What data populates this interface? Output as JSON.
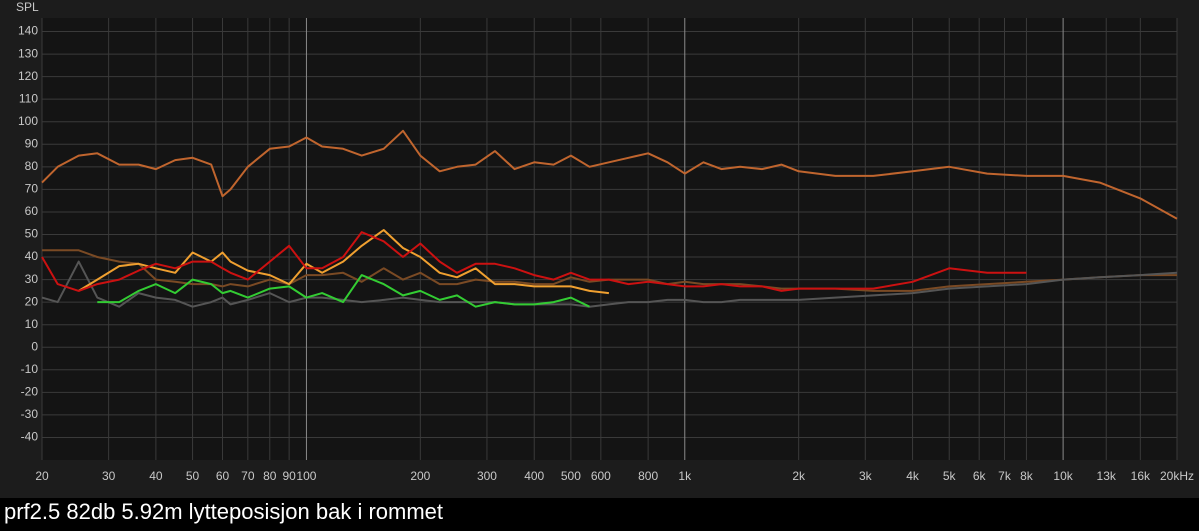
{
  "chart_data": {
    "type": "line",
    "title": "prf2.5 82db 5.92m lytteposisjon bak i rommet",
    "y_label": "SPL",
    "log_x": true,
    "grid": true,
    "xlim": [
      20,
      20000
    ],
    "ylim": [
      -50,
      146
    ],
    "yticks": [
      140,
      130,
      120,
      110,
      100,
      90,
      80,
      70,
      60,
      50,
      40,
      30,
      20,
      10,
      0,
      -10,
      -20,
      -30,
      -40
    ],
    "xticks": [
      20,
      30,
      40,
      50,
      60,
      70,
      80,
      90,
      100,
      200,
      300,
      400,
      500,
      600,
      800,
      {
        "value": 1000,
        "label": "1k"
      },
      {
        "value": 2000,
        "label": "2k"
      },
      {
        "value": 3000,
        "label": "3k"
      },
      {
        "value": 4000,
        "label": "4k"
      },
      {
        "value": 5000,
        "label": "5k"
      },
      {
        "value": 6000,
        "label": "6k"
      },
      {
        "value": 7000,
        "label": "7k"
      },
      {
        "value": 8000,
        "label": "8k"
      },
      {
        "value": 10000,
        "label": "10k"
      },
      {
        "value": 13000,
        "label": "13k"
      },
      {
        "value": 16000,
        "label": "16k"
      },
      {
        "value": 20000,
        "label": "20kHz"
      }
    ],
    "x": [
      20,
      22,
      25,
      28,
      32,
      36,
      40,
      45,
      50,
      56,
      60,
      63,
      70,
      80,
      90,
      100,
      110,
      125,
      140,
      160,
      180,
      200,
      225,
      250,
      280,
      315,
      355,
      400,
      450,
      500,
      560,
      630,
      710,
      800,
      900,
      1000,
      1120,
      1250,
      1400,
      1600,
      1800,
      2000,
      2500,
      3150,
      4000,
      5000,
      6300,
      8000,
      10000,
      12500,
      16000,
      20000
    ],
    "series": [
      {
        "color": "#7a4a24",
        "values": [
          43,
          43,
          43,
          40,
          38,
          37,
          30,
          29,
          28,
          28,
          27,
          28,
          27,
          30,
          28,
          32,
          32,
          33,
          29,
          35,
          30,
          33,
          28,
          28,
          30,
          29,
          29,
          28,
          28,
          31,
          29,
          30,
          30,
          30,
          28,
          29,
          28,
          28,
          28,
          27,
          26,
          26,
          26,
          25,
          25,
          27,
          28,
          29,
          30,
          31,
          32,
          32
        ]
      },
      {
        "color": "#555555",
        "values": [
          22,
          20,
          38,
          22,
          18,
          24,
          22,
          21,
          18,
          20,
          22,
          19,
          21,
          24,
          20,
          22,
          22,
          21,
          20,
          21,
          22,
          21,
          20,
          20,
          20,
          20,
          19,
          19,
          19,
          19,
          18,
          19,
          20,
          20,
          21,
          21,
          20,
          20,
          21,
          21,
          21,
          21,
          22,
          23,
          24,
          26,
          27,
          28,
          30,
          31,
          32,
          33
        ]
      },
      {
        "color": "#33cc33",
        "values": [
          null,
          null,
          null,
          20,
          20,
          25,
          28,
          24,
          30,
          28,
          24,
          25,
          22,
          26,
          27,
          22,
          24,
          20,
          32,
          28,
          23,
          25,
          21,
          23,
          18,
          20,
          19,
          19,
          20,
          22,
          18,
          null,
          null,
          null,
          null,
          null,
          null,
          null,
          null,
          null,
          null,
          null,
          null,
          null,
          null,
          null,
          null,
          null,
          null,
          null,
          null,
          null
        ]
      },
      {
        "color": "#f0a030",
        "values": [
          null,
          null,
          25,
          30,
          36,
          37,
          35,
          33,
          42,
          38,
          42,
          38,
          34,
          32,
          28,
          37,
          33,
          38,
          45,
          52,
          44,
          40,
          33,
          31,
          35,
          28,
          28,
          27,
          27,
          27,
          25,
          24,
          null,
          null,
          null,
          null,
          null,
          null,
          null,
          null,
          null,
          null,
          null,
          null,
          null,
          null,
          null,
          null,
          null,
          null,
          null,
          null
        ]
      },
      {
        "color": "#cc1111",
        "values": [
          40,
          28,
          25,
          28,
          30,
          34,
          37,
          35,
          38,
          38,
          35,
          33,
          30,
          38,
          45,
          35,
          35,
          40,
          51,
          47,
          40,
          46,
          38,
          33,
          37,
          37,
          35,
          32,
          30,
          33,
          30,
          30,
          28,
          29,
          28,
          27,
          27,
          28,
          27,
          27,
          25,
          26,
          26,
          26,
          29,
          35,
          33,
          33,
          null,
          null,
          null,
          null
        ]
      },
      {
        "color": "#c0652e",
        "values": [
          73,
          80,
          85,
          86,
          81,
          81,
          79,
          83,
          84,
          81,
          67,
          70,
          80,
          88,
          89,
          93,
          89,
          88,
          85,
          88,
          96,
          85,
          78,
          80,
          81,
          87,
          79,
          82,
          81,
          85,
          80,
          82,
          84,
          86,
          82,
          77,
          82,
          79,
          80,
          79,
          81,
          78,
          76,
          76,
          78,
          80,
          77,
          76,
          76,
          73,
          66,
          57
        ]
      }
    ]
  }
}
